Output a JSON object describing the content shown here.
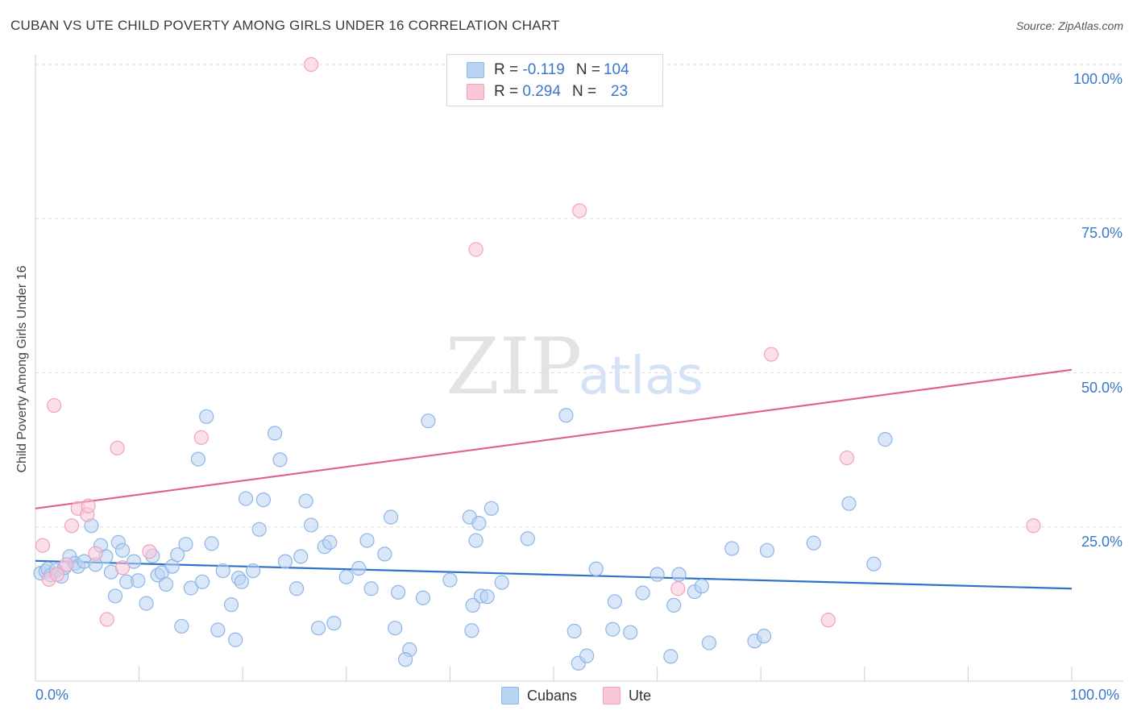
{
  "header": {
    "title": "CUBAN VS UTE CHILD POVERTY AMONG GIRLS UNDER 16 CORRELATION CHART",
    "source": "Source: ZipAtlas.com"
  },
  "watermark": {
    "zip": "ZIP",
    "atlas": "atlas"
  },
  "legend": {
    "rows": [
      {
        "r_label": "R =",
        "r_value": "-0.119",
        "n_label": "N =",
        "n_value": "104",
        "color": "#b9d3f3",
        "border": "#8fb6e8"
      },
      {
        "r_label": "R =",
        "r_value": "0.294",
        "n_label": "N =",
        "n_value": "23",
        "color": "#f9c7d7",
        "border": "#f0a2bb"
      }
    ]
  },
  "bottom_legend": {
    "items": [
      {
        "label": "Cubans",
        "color": "#b9d3f3",
        "border": "#8fb6e8"
      },
      {
        "label": "Ute",
        "color": "#f9c7d7",
        "border": "#f0a2bb"
      }
    ]
  },
  "chart_data": {
    "type": "scatter",
    "title": "CUBAN VS UTE CHILD POVERTY AMONG GIRLS UNDER 16 CORRELATION CHART",
    "xlabel": "",
    "ylabel": "Child Poverty Among Girls Under 16",
    "xlim": [
      0,
      100
    ],
    "ylim": [
      0,
      100
    ],
    "x_tick_labels": [
      "0.0%",
      "100.0%"
    ],
    "y_ticks": [
      25,
      50,
      75,
      100
    ],
    "y_tick_labels": [
      "25.0%",
      "50.0%",
      "75.0%",
      "100.0%"
    ],
    "grid": "horizontal dashed",
    "legend_position": "top-center",
    "series": [
      {
        "name": "Cubans",
        "color": "#8fb6e8",
        "fill": "#b9d3f3",
        "trend": {
          "x": [
            0,
            100
          ],
          "y": [
            19.5,
            15.0
          ],
          "color": "#2f72c9"
        },
        "points": [
          [
            0.5,
            17.5
          ],
          [
            1.0,
            17.8
          ],
          [
            1.2,
            18.2
          ],
          [
            1.5,
            17.2
          ],
          [
            2.0,
            18.0
          ],
          [
            2.5,
            17.0
          ],
          [
            2.8,
            18.4
          ],
          [
            3.3,
            20.2
          ],
          [
            3.8,
            19.1
          ],
          [
            4.1,
            18.6
          ],
          [
            4.7,
            19.4
          ],
          [
            5.4,
            25.2
          ],
          [
            5.8,
            18.9
          ],
          [
            6.3,
            22.0
          ],
          [
            6.8,
            20.2
          ],
          [
            7.3,
            17.7
          ],
          [
            7.7,
            13.8
          ],
          [
            8.0,
            22.5
          ],
          [
            8.4,
            21.2
          ],
          [
            8.8,
            16.1
          ],
          [
            9.5,
            19.4
          ],
          [
            9.9,
            16.3
          ],
          [
            10.7,
            12.6
          ],
          [
            11.3,
            20.3
          ],
          [
            11.8,
            17.2
          ],
          [
            12.2,
            17.6
          ],
          [
            12.6,
            15.7
          ],
          [
            13.2,
            18.6
          ],
          [
            13.7,
            20.5
          ],
          [
            14.1,
            8.9
          ],
          [
            14.5,
            22.2
          ],
          [
            15.0,
            15.1
          ],
          [
            15.7,
            36.0
          ],
          [
            16.1,
            16.1
          ],
          [
            16.5,
            42.9
          ],
          [
            17.0,
            22.3
          ],
          [
            17.6,
            8.3
          ],
          [
            18.1,
            17.9
          ],
          [
            18.9,
            12.4
          ],
          [
            19.3,
            6.7
          ],
          [
            19.6,
            16.7
          ],
          [
            19.9,
            16.1
          ],
          [
            20.3,
            29.6
          ],
          [
            21.0,
            17.9
          ],
          [
            21.6,
            24.6
          ],
          [
            22.0,
            29.4
          ],
          [
            23.1,
            40.2
          ],
          [
            23.6,
            35.9
          ],
          [
            24.1,
            19.4
          ],
          [
            25.2,
            15.0
          ],
          [
            25.6,
            20.2
          ],
          [
            26.1,
            29.2
          ],
          [
            26.6,
            25.3
          ],
          [
            27.3,
            8.6
          ],
          [
            27.9,
            21.8
          ],
          [
            28.4,
            22.5
          ],
          [
            28.8,
            9.4
          ],
          [
            30.0,
            16.9
          ],
          [
            31.2,
            18.3
          ],
          [
            32.4,
            15.0
          ],
          [
            32.0,
            22.8
          ],
          [
            33.7,
            20.6
          ],
          [
            34.3,
            26.6
          ],
          [
            34.7,
            8.6
          ],
          [
            35.0,
            14.4
          ],
          [
            36.1,
            5.1
          ],
          [
            35.7,
            3.5
          ],
          [
            37.4,
            13.5
          ],
          [
            37.9,
            42.2
          ],
          [
            40.0,
            16.4
          ],
          [
            42.1,
            8.2
          ],
          [
            41.9,
            26.6
          ],
          [
            42.5,
            22.8
          ],
          [
            42.2,
            12.3
          ],
          [
            42.8,
            25.6
          ],
          [
            43.0,
            13.8
          ],
          [
            43.6,
            13.7
          ],
          [
            44.0,
            28.0
          ],
          [
            45.0,
            16.0
          ],
          [
            47.5,
            23.1
          ],
          [
            51.2,
            43.1
          ],
          [
            52.0,
            8.1
          ],
          [
            52.4,
            2.9
          ],
          [
            53.2,
            4.1
          ],
          [
            54.1,
            18.2
          ],
          [
            55.7,
            8.4
          ],
          [
            55.9,
            12.9
          ],
          [
            57.4,
            7.9
          ],
          [
            58.6,
            14.3
          ],
          [
            60.0,
            17.3
          ],
          [
            61.3,
            4.0
          ],
          [
            61.6,
            12.3
          ],
          [
            62.1,
            17.3
          ],
          [
            63.6,
            14.5
          ],
          [
            64.3,
            15.4
          ],
          [
            65.0,
            6.2
          ],
          [
            67.2,
            21.5
          ],
          [
            69.4,
            6.5
          ],
          [
            70.3,
            7.3
          ],
          [
            70.6,
            21.2
          ],
          [
            75.1,
            22.4
          ],
          [
            78.5,
            28.8
          ],
          [
            80.9,
            19.0
          ],
          [
            82.0,
            39.2
          ]
        ]
      },
      {
        "name": "Ute",
        "color": "#f0a2bb",
        "fill": "#f9c7d7",
        "trend": {
          "x": [
            0,
            100
          ],
          "y": [
            28.0,
            50.5
          ],
          "color": "#e0608e"
        },
        "points": [
          [
            0.7,
            22.0
          ],
          [
            1.3,
            16.5
          ],
          [
            2.1,
            17.3
          ],
          [
            3.0,
            18.9
          ],
          [
            1.8,
            44.7
          ],
          [
            3.5,
            25.2
          ],
          [
            4.1,
            28.0
          ],
          [
            5.0,
            27.0
          ],
          [
            5.1,
            28.4
          ],
          [
            5.8,
            20.7
          ],
          [
            6.9,
            10.0
          ],
          [
            7.9,
            37.8
          ],
          [
            8.4,
            18.4
          ],
          [
            11.0,
            21.0
          ],
          [
            16.0,
            39.5
          ],
          [
            26.6,
            100.0
          ],
          [
            42.5,
            70.0
          ],
          [
            52.5,
            76.3
          ],
          [
            71.0,
            53.0
          ],
          [
            76.5,
            9.9
          ],
          [
            78.3,
            36.2
          ],
          [
            96.3,
            25.2
          ],
          [
            62.0,
            15.0
          ]
        ]
      }
    ]
  }
}
